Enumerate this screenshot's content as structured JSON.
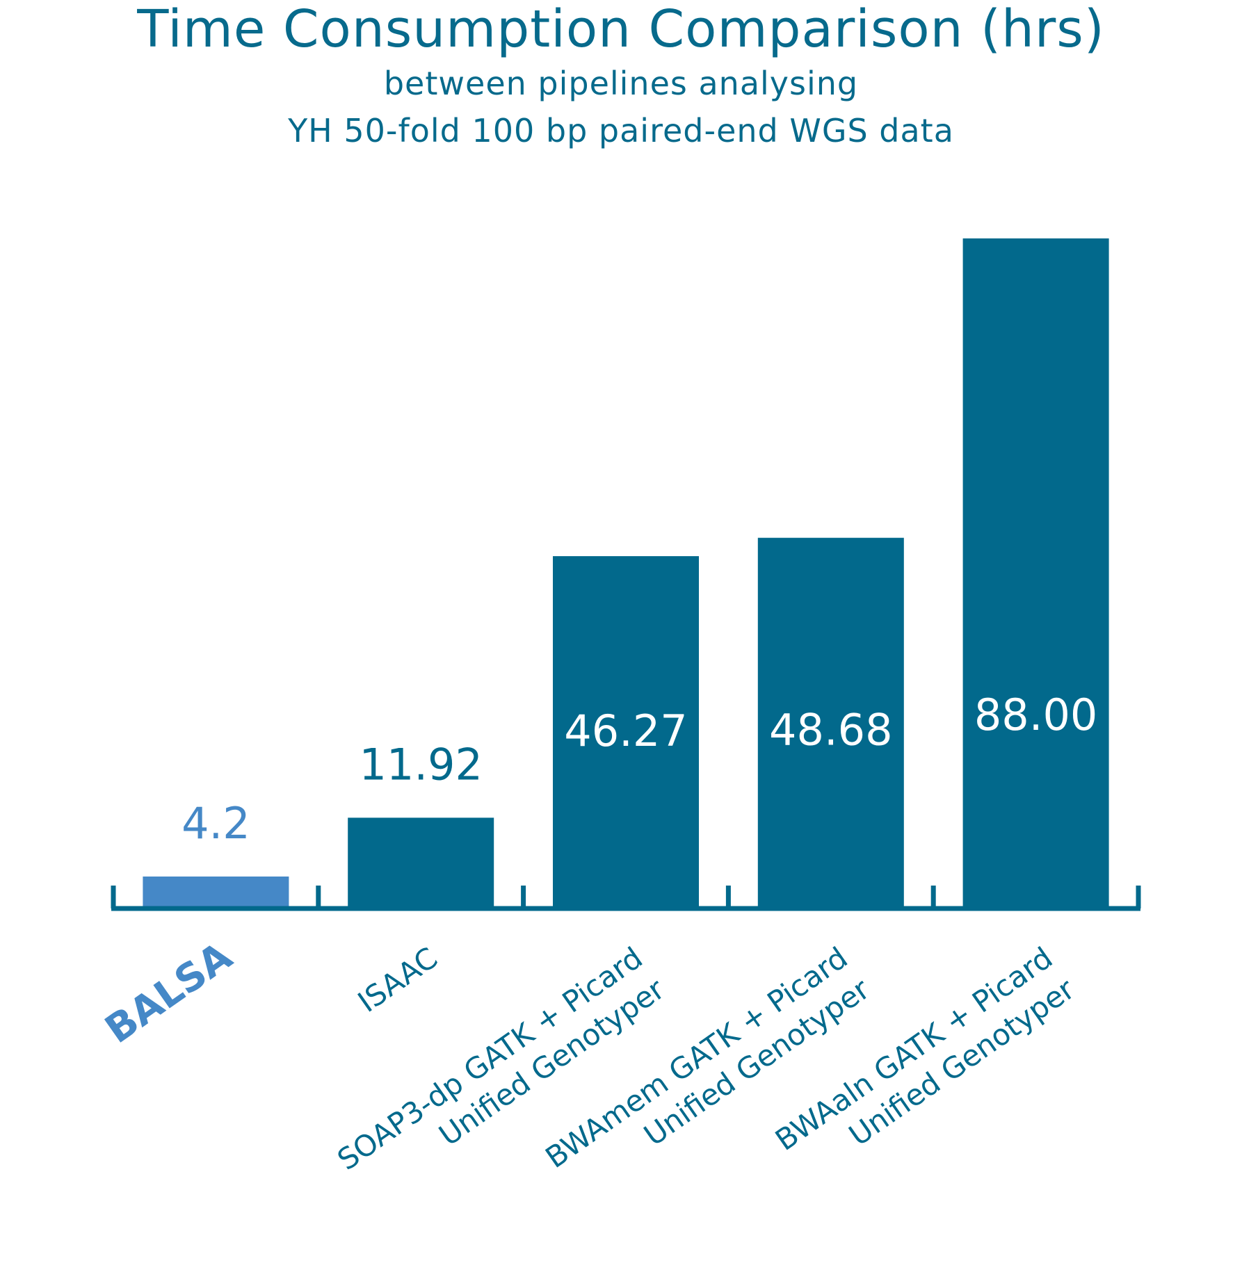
{
  "chart_data": {
    "type": "bar",
    "title": "Time Consumption Comparison (hrs)",
    "subtitle": [
      "between pipelines analysing",
      "YH 50-fold 100 bp paired-end WGS data"
    ],
    "categories": [
      [
        "BALSA"
      ],
      [
        "ISAAC"
      ],
      [
        "SOAP3-dp GATK + Picard",
        "Unified Genotyper"
      ],
      [
        "BWAmem GATK + Picard",
        "Unified Genotyper"
      ],
      [
        "BWAaln GATK + Picard",
        "Unified Genotyper"
      ]
    ],
    "values": [
      4.2,
      11.92,
      46.27,
      48.68,
      88.0
    ],
    "value_labels": [
      "4.2",
      "11.92",
      "46.27",
      "48.68",
      "88.00"
    ],
    "highlight_index": 0,
    "ylim": [
      0,
      88
    ],
    "grid": false,
    "legend": "none",
    "xlabel": "",
    "ylabel": "",
    "colors": {
      "bar": "#02698c",
      "highlight": "#4588c7",
      "axis": "#02698c",
      "title": "#076a8c",
      "inside_label": "#ffffff"
    }
  }
}
